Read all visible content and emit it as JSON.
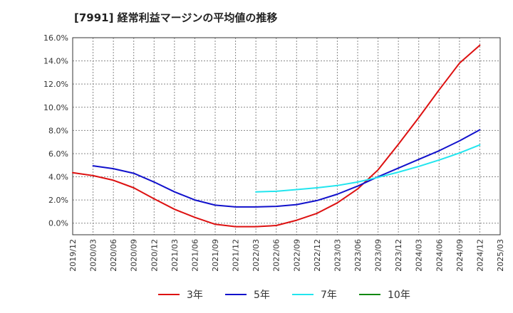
{
  "chart_data": {
    "type": "line",
    "title": "[7991]  経常利益マージンの平均値の推移",
    "xlabel": "",
    "ylabel": "",
    "ylim": [
      -1.0,
      16.0
    ],
    "x_categories": [
      "2019/12",
      "2020/03",
      "2020/06",
      "2020/09",
      "2020/12",
      "2021/03",
      "2021/06",
      "2021/09",
      "2021/12",
      "2022/03",
      "2022/06",
      "2022/09",
      "2022/12",
      "2023/03",
      "2023/06",
      "2023/09",
      "2023/12",
      "2024/03",
      "2024/06",
      "2024/09",
      "2024/12",
      "2025/03"
    ],
    "y_ticks": [
      "0.0%",
      "2.0%",
      "4.0%",
      "6.0%",
      "8.0%",
      "10.0%",
      "12.0%",
      "14.0%",
      "16.0%"
    ],
    "y_tick_values": [
      0,
      2,
      4,
      6,
      8,
      10,
      12,
      14,
      16
    ],
    "grid": true,
    "legend_position": "bottom",
    "series": [
      {
        "name": "3年",
        "color": "#dd1111",
        "points": [
          [
            "2019/12",
            4.35
          ],
          [
            "2020/03",
            4.1
          ],
          [
            "2020/06",
            3.7
          ],
          [
            "2020/09",
            3.05
          ],
          [
            "2020/12",
            2.1
          ],
          [
            "2021/03",
            1.2
          ],
          [
            "2021/06",
            0.5
          ],
          [
            "2021/09",
            -0.1
          ],
          [
            "2021/12",
            -0.3
          ],
          [
            "2022/03",
            -0.3
          ],
          [
            "2022/06",
            -0.2
          ],
          [
            "2022/09",
            0.25
          ],
          [
            "2022/12",
            0.85
          ],
          [
            "2023/03",
            1.75
          ],
          [
            "2023/06",
            2.95
          ],
          [
            "2023/09",
            4.6
          ],
          [
            "2023/12",
            6.8
          ],
          [
            "2024/03",
            9.1
          ],
          [
            "2024/06",
            11.5
          ],
          [
            "2024/09",
            13.8
          ],
          [
            "2024/12",
            15.35
          ]
        ]
      },
      {
        "name": "5年",
        "color": "#1111cc",
        "points": [
          [
            "2020/03",
            4.95
          ],
          [
            "2020/06",
            4.7
          ],
          [
            "2020/09",
            4.3
          ],
          [
            "2020/12",
            3.55
          ],
          [
            "2021/03",
            2.7
          ],
          [
            "2021/06",
            2.0
          ],
          [
            "2021/09",
            1.55
          ],
          [
            "2021/12",
            1.4
          ],
          [
            "2022/03",
            1.4
          ],
          [
            "2022/06",
            1.45
          ],
          [
            "2022/09",
            1.6
          ],
          [
            "2022/12",
            1.95
          ],
          [
            "2023/03",
            2.5
          ],
          [
            "2023/06",
            3.2
          ],
          [
            "2023/09",
            4.0
          ],
          [
            "2023/12",
            4.75
          ],
          [
            "2024/03",
            5.5
          ],
          [
            "2024/06",
            6.25
          ],
          [
            "2024/09",
            7.1
          ],
          [
            "2024/12",
            8.05
          ]
        ]
      },
      {
        "name": "7年",
        "color": "#22e5ee",
        "points": [
          [
            "2022/03",
            2.7
          ],
          [
            "2022/06",
            2.75
          ],
          [
            "2022/09",
            2.9
          ],
          [
            "2022/12",
            3.05
          ],
          [
            "2023/03",
            3.25
          ],
          [
            "2023/06",
            3.55
          ],
          [
            "2023/09",
            3.95
          ],
          [
            "2023/12",
            4.4
          ],
          [
            "2024/03",
            4.9
          ],
          [
            "2024/06",
            5.45
          ],
          [
            "2024/09",
            6.05
          ],
          [
            "2024/12",
            6.75
          ]
        ]
      },
      {
        "name": "10年",
        "color": "#118811",
        "points": []
      }
    ]
  }
}
